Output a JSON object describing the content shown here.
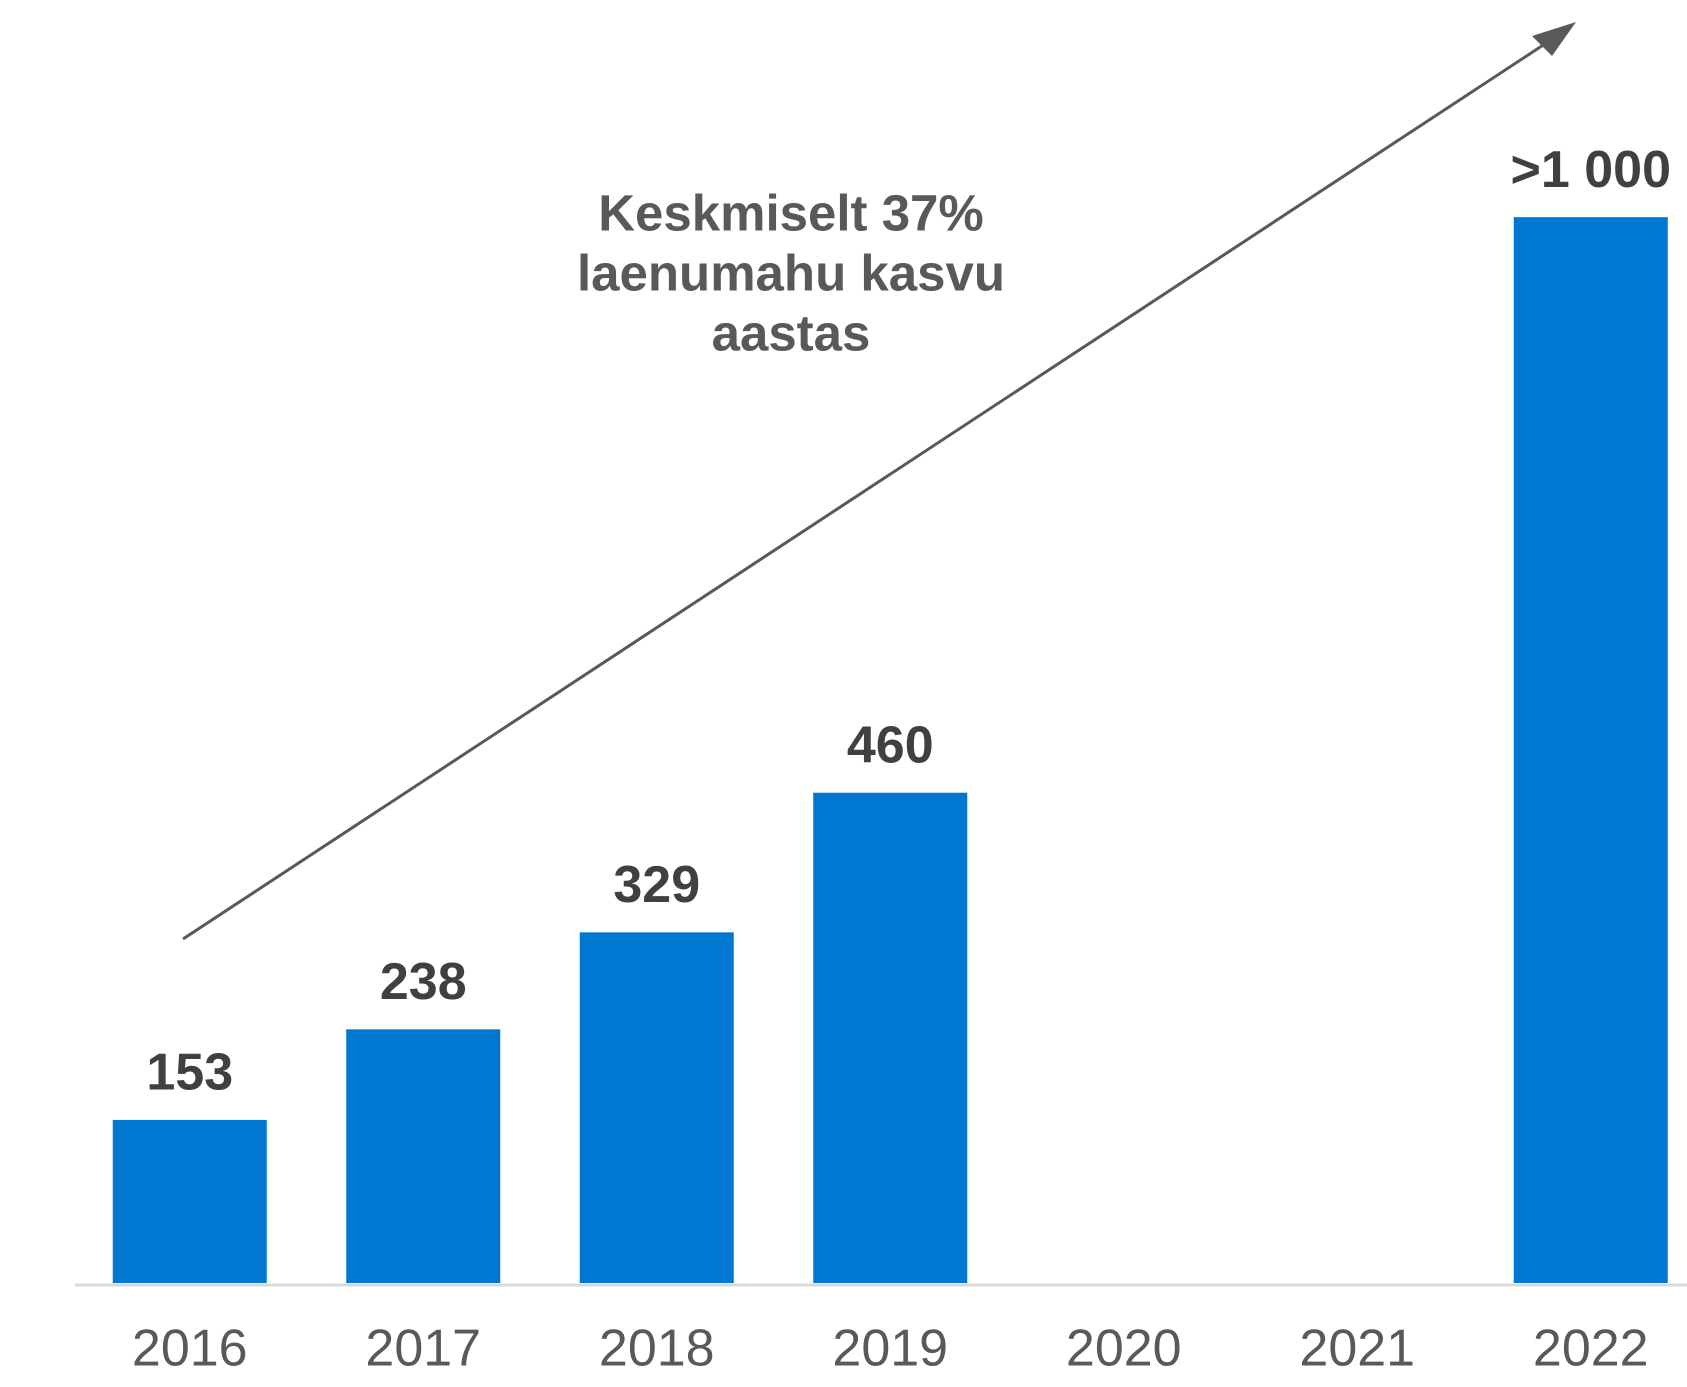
{
  "chart_data": {
    "type": "bar",
    "annotation": [
      "Keskmiselt 37%",
      "laenumahu kasvu",
      "aastas"
    ],
    "categories": [
      "2016",
      "2017",
      "2018",
      "2019",
      "2020",
      "2021",
      "2022"
    ],
    "values": [
      153,
      238,
      329,
      460,
      null,
      null,
      1000
    ],
    "value_labels": [
      "153",
      "238",
      "329",
      "460",
      null,
      null,
      ">1 000"
    ],
    "color": "#0077d1",
    "ylim": [
      0,
      1200
    ]
  }
}
